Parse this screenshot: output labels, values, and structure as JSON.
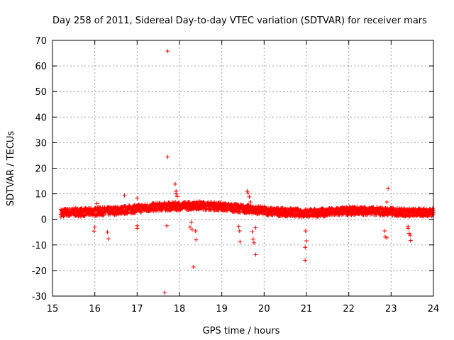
{
  "chart_data": {
    "type": "scatter",
    "title": "Day 258 of 2011, Sidereal Day-to-day VTEC variation (SDTVAR) for receiver mars",
    "xlabel": "GPS time / hours",
    "ylabel": "SDTVAR / TECUs",
    "xlim": [
      15,
      24
    ],
    "ylim": [
      -30,
      70
    ],
    "x_ticks": [
      "15",
      "16",
      "17",
      "18",
      "19",
      "20",
      "21",
      "22",
      "23",
      "24"
    ],
    "y_ticks": [
      "70",
      "60",
      "50",
      "40",
      "30",
      "20",
      "10",
      "0",
      "-10",
      "-20",
      "-30"
    ],
    "grid": true,
    "marker": "+",
    "color": "#ff0000",
    "series": [
      {
        "name": "SDTVAR",
        "band": [
          [
            15.2,
            2.6
          ],
          [
            15.5,
            2.8
          ],
          [
            15.8,
            2.8
          ],
          [
            16.0,
            3.0
          ],
          [
            16.3,
            3.2
          ],
          [
            16.6,
            3.5
          ],
          [
            16.9,
            4.0
          ],
          [
            17.2,
            4.5
          ],
          [
            17.5,
            4.9
          ],
          [
            17.8,
            5.1
          ],
          [
            18.1,
            5.2
          ],
          [
            18.4,
            5.5
          ],
          [
            18.7,
            5.3
          ],
          [
            19.0,
            5.0
          ],
          [
            19.3,
            4.5
          ],
          [
            19.6,
            4.0
          ],
          [
            19.9,
            3.5
          ],
          [
            20.2,
            3.0
          ],
          [
            20.5,
            2.8
          ],
          [
            20.8,
            2.6
          ],
          [
            21.0,
            2.5
          ],
          [
            21.3,
            2.6
          ],
          [
            21.6,
            2.9
          ],
          [
            21.9,
            3.2
          ],
          [
            22.2,
            3.4
          ],
          [
            22.5,
            3.3
          ],
          [
            22.8,
            3.1
          ],
          [
            23.1,
            2.9
          ],
          [
            23.4,
            2.7
          ],
          [
            23.7,
            2.7
          ],
          [
            24.0,
            2.8
          ]
        ],
        "band_halfwidth": 1.6,
        "outliers": [
          [
            17.72,
            65.8
          ],
          [
            17.72,
            24.4
          ],
          [
            17.65,
            -28.7
          ],
          [
            18.33,
            -18.6
          ],
          [
            18.39,
            -8.0
          ],
          [
            17.9,
            13.8
          ],
          [
            17.92,
            11.0
          ],
          [
            17.92,
            10.0
          ],
          [
            17.95,
            9.0
          ],
          [
            16.7,
            9.4
          ],
          [
            17.0,
            8.3
          ],
          [
            16.05,
            6.2
          ],
          [
            16.1,
            4.8
          ],
          [
            16.3,
            -5.0
          ],
          [
            16.32,
            -7.6
          ],
          [
            15.98,
            -4.6
          ],
          [
            16.0,
            -3.0
          ],
          [
            17.0,
            -2.5
          ],
          [
            17.0,
            -3.5
          ],
          [
            17.7,
            -2.5
          ],
          [
            18.25,
            -3.0
          ],
          [
            18.28,
            -1.2
          ],
          [
            18.3,
            -4.0
          ],
          [
            18.38,
            -4.5
          ],
          [
            19.4,
            -2.8
          ],
          [
            19.42,
            -4.5
          ],
          [
            19.43,
            -8.8
          ],
          [
            19.6,
            11.0
          ],
          [
            19.62,
            10.3
          ],
          [
            19.65,
            8.8
          ],
          [
            19.68,
            6.8
          ],
          [
            19.72,
            -4.8
          ],
          [
            19.74,
            -7.7
          ],
          [
            19.76,
            -9.2
          ],
          [
            19.8,
            -13.8
          ],
          [
            19.8,
            -3.3
          ],
          [
            20.3,
            4.5
          ],
          [
            20.98,
            -4.5
          ],
          [
            21.0,
            -8.4
          ],
          [
            20.97,
            -11.0
          ],
          [
            20.97,
            -16.0
          ],
          [
            22.85,
            -4.5
          ],
          [
            22.86,
            -6.8
          ],
          [
            22.9,
            -7.2
          ],
          [
            22.9,
            6.8
          ],
          [
            22.93,
            12.0
          ],
          [
            23.4,
            -3.5
          ],
          [
            23.43,
            -5.5
          ],
          [
            23.45,
            -6.2
          ],
          [
            23.46,
            -8.3
          ],
          [
            23.4,
            -2.8
          ]
        ]
      }
    ]
  }
}
